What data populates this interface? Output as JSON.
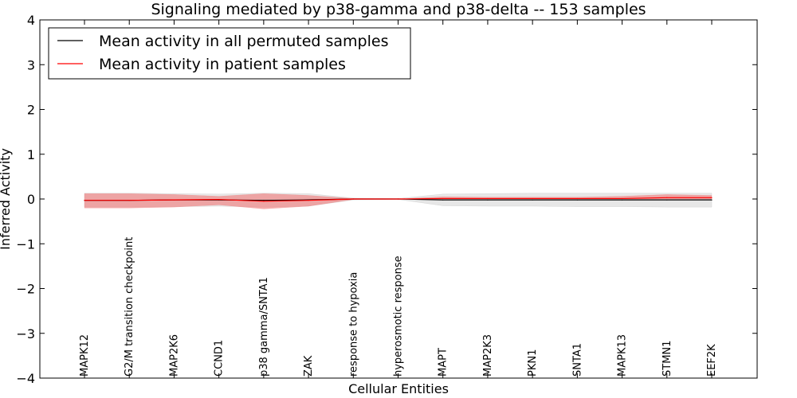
{
  "chart_data": {
    "type": "line",
    "title": "Signaling mediated by p38-gamma and p38-delta -- 153 samples",
    "xlabel": "Cellular Entities",
    "ylabel": "Inferred Activity",
    "ylim": [
      -4,
      4
    ],
    "yticks": [
      -4,
      -3,
      -2,
      -1,
      0,
      1,
      2,
      3,
      4
    ],
    "ytick_labels": [
      "−4",
      "−3",
      "−2",
      "−1",
      "0",
      "1",
      "2",
      "3",
      "4"
    ],
    "legend_position": "top-left",
    "categories": [
      "MAPK12",
      "G2/M transition checkpoint",
      "MAP2K6",
      "CCND1",
      "p38 gamma/SNTA1",
      "ZAK",
      "response to hypoxia",
      "hyperosmotic response",
      "MAPT",
      "MAP2K3",
      "PKN1",
      "SNTA1",
      "MAPK13",
      "STMN1",
      "EEF2K"
    ],
    "series": [
      {
        "name": "Mean activity in all permuted samples",
        "color": "#000000",
        "band_color": "#bbbbbb",
        "values": [
          -0.03,
          -0.03,
          -0.02,
          -0.02,
          -0.03,
          -0.02,
          0.0,
          0.0,
          -0.02,
          -0.02,
          -0.02,
          -0.02,
          -0.02,
          -0.02,
          -0.02
        ],
        "band_lower": [
          -0.18,
          -0.18,
          -0.17,
          -0.16,
          -0.18,
          -0.16,
          -0.02,
          -0.01,
          -0.15,
          -0.16,
          -0.16,
          -0.17,
          -0.17,
          -0.18,
          -0.18
        ],
        "band_upper": [
          0.13,
          0.13,
          0.12,
          0.11,
          0.13,
          0.12,
          0.02,
          0.01,
          0.11,
          0.12,
          0.13,
          0.13,
          0.13,
          0.13,
          0.13
        ]
      },
      {
        "name": "Mean activity in patient samples",
        "color": "#ff0000",
        "band_color": "#f08080",
        "values": [
          -0.03,
          -0.03,
          -0.02,
          -0.01,
          -0.05,
          -0.03,
          0.0,
          0.0,
          0.01,
          0.01,
          0.01,
          0.01,
          0.01,
          0.03,
          0.03
        ],
        "band_lower": [
          -0.2,
          -0.2,
          -0.18,
          -0.13,
          -0.22,
          -0.16,
          -0.01,
          0.0,
          0.0,
          0.0,
          0.0,
          0.0,
          0.0,
          0.0,
          0.0
        ],
        "band_upper": [
          0.12,
          0.12,
          0.1,
          0.06,
          0.12,
          0.08,
          0.01,
          0.0,
          0.05,
          0.04,
          0.04,
          0.04,
          0.06,
          0.1,
          0.08
        ]
      }
    ]
  }
}
